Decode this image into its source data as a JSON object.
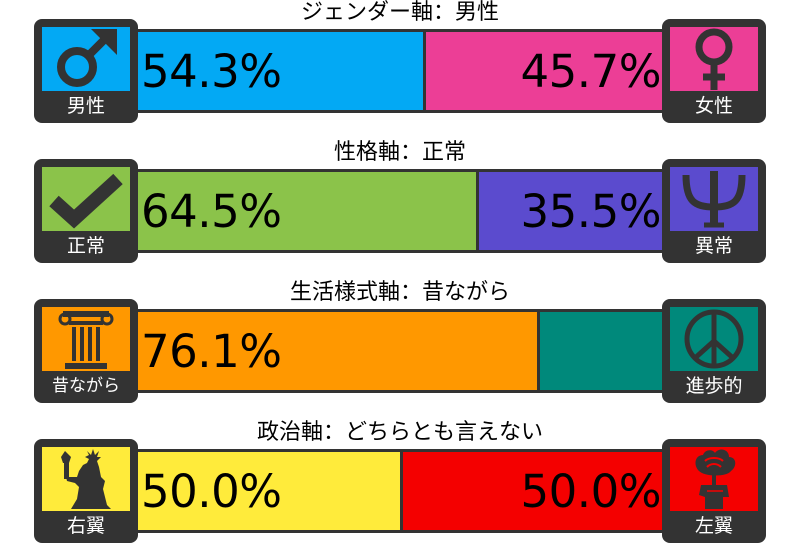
{
  "axes": [
    {
      "title": "ジェンダー軸：男性",
      "left": {
        "label": "男性",
        "icon": "male-symbol-icon",
        "color": "#03a9f4",
        "percent": 54.3,
        "percent_text": "54.3%"
      },
      "right": {
        "label": "女性",
        "icon": "female-symbol-icon",
        "color": "#ec3e96",
        "percent": 45.7,
        "percent_text": "45.7%"
      }
    },
    {
      "title": "性格軸：正常",
      "left": {
        "label": "正常",
        "icon": "checkmark-icon",
        "color": "#8bc34a",
        "percent": 64.5,
        "percent_text": "64.5%"
      },
      "right": {
        "label": "異常",
        "icon": "psi-icon",
        "color": "#5b4bce",
        "percent": 35.5,
        "percent_text": "35.5%"
      }
    },
    {
      "title": "生活様式軸：昔ながら",
      "left": {
        "label": "昔ながら",
        "icon": "column-icon",
        "color": "#ff9800",
        "percent": 76.1,
        "percent_text": "76.1%"
      },
      "right": {
        "label": "進歩的",
        "icon": "peace-icon",
        "color": "#00897b",
        "percent": 23.9,
        "percent_text": ""
      }
    },
    {
      "title": "政治軸：どちらとも言えない",
      "left": {
        "label": "右翼",
        "icon": "statue-of-liberty-icon",
        "color": "#ffeb3b",
        "percent": 50.0,
        "percent_text": "50.0%"
      },
      "right": {
        "label": "左翼",
        "icon": "rose-fist-icon",
        "color": "#f40000",
        "percent": 50.0,
        "percent_text": "50.0%"
      }
    }
  ]
}
